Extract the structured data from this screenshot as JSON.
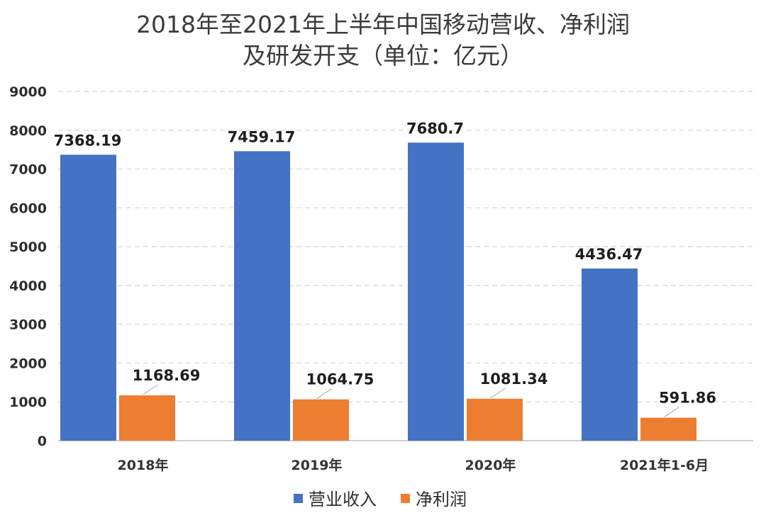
{
  "chart_data": {
    "type": "bar",
    "title_lines": [
      "2018年至2021年上半年中国移动营收、净利润",
      "及研发开支（单位：亿元）"
    ],
    "categories": [
      "2018年",
      "2019年",
      "2020年",
      "2021年1-6月"
    ],
    "series": [
      {
        "name": "营业收入",
        "color": "#4472c4",
        "values": [
          7368.19,
          7459.17,
          7680.7,
          4436.47
        ],
        "labels": [
          "7368.19",
          "7459.17",
          "7680.7",
          "4436.47"
        ]
      },
      {
        "name": "净利润",
        "color": "#ed7d31",
        "values": [
          1168.69,
          1064.75,
          1081.34,
          591.86
        ],
        "labels": [
          "1168.69",
          "1064.75",
          "1081.34",
          "591.86"
        ]
      }
    ],
    "ylim": [
      0,
      9000
    ],
    "yticks": [
      0,
      1000,
      2000,
      3000,
      4000,
      5000,
      6000,
      7000,
      8000,
      9000
    ],
    "grid": true,
    "legend_position": "bottom"
  }
}
